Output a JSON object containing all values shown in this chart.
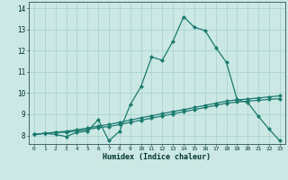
{
  "xlabel": "Humidex (Indice chaleur)",
  "background_color": "#cce8e4",
  "grid_color": "#aad4d0",
  "line_color": "#1a7a6e",
  "x_values": [
    0,
    1,
    2,
    3,
    4,
    5,
    6,
    7,
    8,
    9,
    10,
    11,
    12,
    13,
    14,
    15,
    16,
    17,
    18,
    19,
    20,
    21,
    22,
    23
  ],
  "line1": [
    8.05,
    8.1,
    8.05,
    7.95,
    8.15,
    8.2,
    8.75,
    7.75,
    8.2,
    9.45,
    10.3,
    11.7,
    11.55,
    12.45,
    13.6,
    13.1,
    12.95,
    12.15,
    11.45,
    9.7,
    9.55,
    8.9,
    8.3,
    7.75
  ],
  "line2": [
    8.05,
    8.1,
    8.15,
    8.15,
    8.22,
    8.28,
    8.38,
    8.42,
    8.52,
    8.62,
    8.72,
    8.82,
    8.92,
    9.02,
    9.12,
    9.22,
    9.32,
    9.42,
    9.52,
    9.58,
    9.62,
    9.66,
    9.7,
    9.74
  ],
  "line3": [
    8.05,
    8.1,
    8.15,
    8.2,
    8.27,
    8.35,
    8.45,
    8.52,
    8.62,
    8.73,
    8.83,
    8.93,
    9.03,
    9.13,
    9.22,
    9.32,
    9.42,
    9.52,
    9.62,
    9.68,
    9.72,
    9.77,
    9.82,
    9.87
  ],
  "ylim": [
    7.6,
    14.3
  ],
  "xlim": [
    -0.5,
    23.5
  ],
  "yticks": [
    8,
    9,
    10,
    11,
    12,
    13,
    14
  ]
}
